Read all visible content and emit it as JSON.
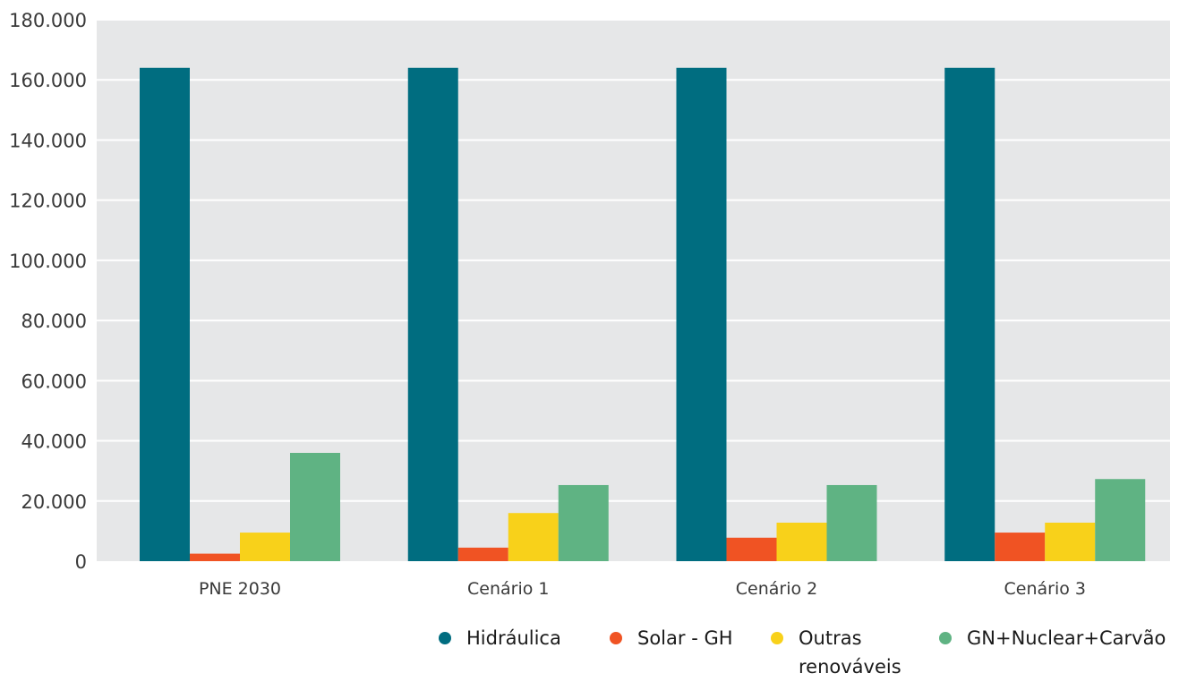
{
  "chart_data": {
    "type": "bar",
    "title": "",
    "xlabel": "",
    "ylabel": "",
    "ylim": [
      0,
      180000
    ],
    "ytick_step": 20000,
    "ytick_labels": [
      "0",
      "20.000",
      "40.000",
      "60.000",
      "80.000",
      "100.000",
      "120.000",
      "140.000",
      "160.000",
      "180.000"
    ],
    "categories": [
      "PNE 2030",
      "Cenário 1",
      "Cenário 2",
      "Cenário 3"
    ],
    "series": [
      {
        "name": "Hidráulica",
        "color": "#006d80",
        "values": [
          164000,
          164000,
          164000,
          164000
        ]
      },
      {
        "name": "Solar - GH",
        "color": "#f05323",
        "values": [
          2500,
          4500,
          7800,
          9500
        ]
      },
      {
        "name": "Outras renováveis",
        "color": "#f8d11a",
        "values": [
          9500,
          16000,
          12800,
          12800
        ]
      },
      {
        "name": "GN+Nuclear+Carvão",
        "color": "#5fb383",
        "values": [
          36000,
          25300,
          25300,
          27300
        ]
      }
    ],
    "grid": true,
    "plot_background": "#e6e7e8",
    "legend_position": "bottom-right"
  }
}
